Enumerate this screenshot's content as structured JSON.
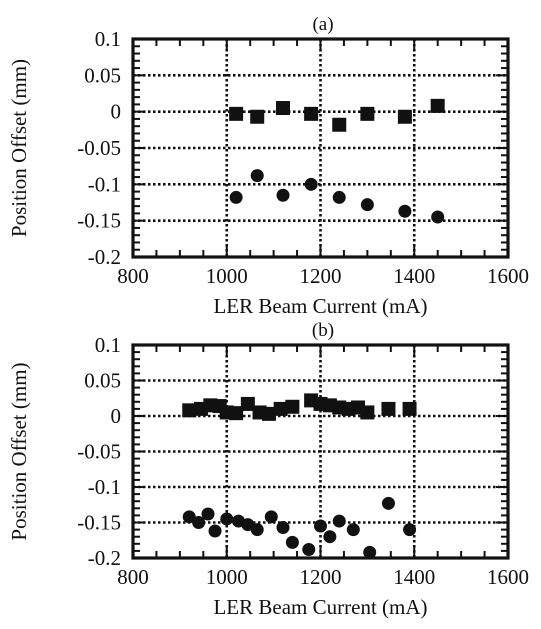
{
  "figure": {
    "panels": [
      "(a)",
      "(b)"
    ]
  },
  "chart_data": [
    {
      "type": "scatter",
      "panel_label": "(a)",
      "title": "",
      "xlabel": "LER Beam Current (mA)",
      "ylabel": "Position Offset (mm)",
      "xlim": [
        800,
        1600
      ],
      "ylim": [
        -0.2,
        0.1
      ],
      "x_ticks": [
        800,
        1000,
        1200,
        1400,
        1600
      ],
      "x_tick_labels": [
        "800",
        "1000",
        "1200",
        "1400",
        "1600"
      ],
      "y_ticks": [
        0.1,
        0.05,
        0,
        -0.05,
        -0.1,
        -0.15,
        -0.2
      ],
      "y_tick_labels": [
        "0.1",
        "0.05",
        "0",
        "-0.05",
        "-0.1",
        "-0.15",
        "-0.2"
      ],
      "grid": true,
      "series": [
        {
          "marker": "square",
          "color": "#111111",
          "points": [
            {
              "x": 1020,
              "y": -0.003
            },
            {
              "x": 1065,
              "y": -0.007
            },
            {
              "x": 1120,
              "y": 0.005
            },
            {
              "x": 1180,
              "y": -0.003
            },
            {
              "x": 1240,
              "y": -0.018
            },
            {
              "x": 1300,
              "y": -0.003
            },
            {
              "x": 1380,
              "y": -0.007
            },
            {
              "x": 1450,
              "y": 0.008
            }
          ]
        },
        {
          "marker": "circle",
          "color": "#111111",
          "points": [
            {
              "x": 1020,
              "y": -0.118
            },
            {
              "x": 1065,
              "y": -0.088
            },
            {
              "x": 1120,
              "y": -0.115
            },
            {
              "x": 1180,
              "y": -0.1
            },
            {
              "x": 1240,
              "y": -0.118
            },
            {
              "x": 1300,
              "y": -0.128
            },
            {
              "x": 1380,
              "y": -0.137
            },
            {
              "x": 1450,
              "y": -0.145
            }
          ]
        }
      ]
    },
    {
      "type": "scatter",
      "panel_label": "(b)",
      "title": "",
      "xlabel": "LER Beam Current (mA)",
      "ylabel": "Position Offset (mm)",
      "xlim": [
        800,
        1600
      ],
      "ylim": [
        -0.2,
        0.1
      ],
      "x_ticks": [
        800,
        1000,
        1200,
        1400,
        1600
      ],
      "x_tick_labels": [
        "800",
        "1000",
        "1200",
        "1400",
        "1600"
      ],
      "y_ticks": [
        0.1,
        0.05,
        0,
        -0.05,
        -0.1,
        -0.15,
        -0.2
      ],
      "y_tick_labels": [
        "0.1",
        "0.05",
        "0",
        "-0.05",
        "-0.1",
        "-0.15",
        "-0.2"
      ],
      "grid": true,
      "series": [
        {
          "marker": "square",
          "color": "#111111",
          "points": [
            {
              "x": 920,
              "y": 0.008
            },
            {
              "x": 945,
              "y": 0.01
            },
            {
              "x": 965,
              "y": 0.015
            },
            {
              "x": 985,
              "y": 0.014
            },
            {
              "x": 1000,
              "y": 0.005
            },
            {
              "x": 1020,
              "y": 0.004
            },
            {
              "x": 1045,
              "y": 0.017
            },
            {
              "x": 1070,
              "y": 0.005
            },
            {
              "x": 1090,
              "y": 0.003
            },
            {
              "x": 1115,
              "y": 0.01
            },
            {
              "x": 1140,
              "y": 0.013
            },
            {
              "x": 1180,
              "y": 0.022
            },
            {
              "x": 1200,
              "y": 0.017
            },
            {
              "x": 1220,
              "y": 0.015
            },
            {
              "x": 1240,
              "y": 0.012
            },
            {
              "x": 1260,
              "y": 0.01
            },
            {
              "x": 1280,
              "y": 0.012
            },
            {
              "x": 1300,
              "y": 0.005
            },
            {
              "x": 1345,
              "y": 0.01
            },
            {
              "x": 1390,
              "y": 0.01
            }
          ]
        },
        {
          "marker": "circle",
          "color": "#111111",
          "points": [
            {
              "x": 920,
              "y": -0.142
            },
            {
              "x": 940,
              "y": -0.15
            },
            {
              "x": 960,
              "y": -0.138
            },
            {
              "x": 975,
              "y": -0.162
            },
            {
              "x": 1000,
              "y": -0.145
            },
            {
              "x": 1025,
              "y": -0.148
            },
            {
              "x": 1045,
              "y": -0.153
            },
            {
              "x": 1065,
              "y": -0.16
            },
            {
              "x": 1095,
              "y": -0.142
            },
            {
              "x": 1120,
              "y": -0.157
            },
            {
              "x": 1140,
              "y": -0.178
            },
            {
              "x": 1175,
              "y": -0.188
            },
            {
              "x": 1200,
              "y": -0.155
            },
            {
              "x": 1220,
              "y": -0.17
            },
            {
              "x": 1240,
              "y": -0.148
            },
            {
              "x": 1270,
              "y": -0.16
            },
            {
              "x": 1305,
              "y": -0.192
            },
            {
              "x": 1345,
              "y": -0.123
            },
            {
              "x": 1390,
              "y": -0.16
            }
          ]
        }
      ]
    }
  ]
}
